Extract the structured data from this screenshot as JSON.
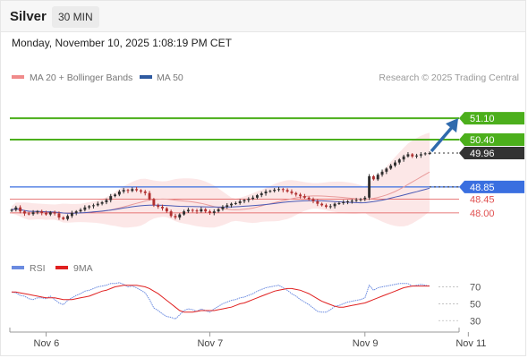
{
  "header": {
    "instrument": "Silver",
    "timeframe": "30 MIN",
    "datetime": "Monday, November 10, 2025 1:08:19 PM CET"
  },
  "colors": {
    "up": "#2e2e2e",
    "down": "#b03030",
    "bollinger_fill": "#f9d4d4",
    "ma20": "#e89a9a",
    "ma50": "#4a5ab5",
    "target": "#4caf1c",
    "support_blue": "#3a6fe0",
    "support_red": "#e05050",
    "last_price": "#333333",
    "rsi": "#6b8be0",
    "rsi_ma": "#e02020",
    "arrow": "#2f6aad"
  },
  "chart_data": [
    {
      "type": "candlestick",
      "legend": [
        {
          "name": "MA 20 + Bollinger Bands",
          "color": "#f08a8a"
        },
        {
          "name": "MA 50",
          "color": "#2e5aa0"
        }
      ],
      "copyright": "Research © 2025 Trading Central",
      "ylim": [
        47.0,
        52.1
      ],
      "levels": [
        {
          "value": 51.1,
          "label": "51.10",
          "kind": "target"
        },
        {
          "value": 50.4,
          "label": "50.40",
          "kind": "target"
        },
        {
          "value": 49.96,
          "label": "49.96",
          "kind": "last"
        },
        {
          "value": 48.85,
          "label": "48.85",
          "kind": "support"
        },
        {
          "value": 48.45,
          "label": "48.45",
          "kind": "support_minor"
        },
        {
          "value": 48.0,
          "label": "48.00",
          "kind": "support_minor"
        }
      ],
      "x_ticks": [
        {
          "label": "Nov 6",
          "index": 8
        },
        {
          "label": "Nov 7",
          "index": 46
        },
        {
          "label": "Nov 9",
          "index": 82
        },
        {
          "label": "Nov 11",
          "index": 106
        }
      ],
      "closes": [
        48.1,
        48.18,
        48.05,
        47.98,
        47.96,
        48.02,
        48.05,
        48.0,
        47.95,
        48.02,
        47.98,
        47.85,
        47.8,
        47.9,
        48.0,
        48.05,
        48.1,
        48.18,
        48.22,
        48.25,
        48.3,
        48.35,
        48.42,
        48.55,
        48.6,
        48.7,
        48.75,
        48.72,
        48.78,
        48.74,
        48.7,
        48.65,
        48.45,
        48.25,
        48.2,
        48.15,
        48.05,
        47.9,
        47.85,
        47.95,
        48.05,
        48.1,
        48.08,
        48.05,
        48.12,
        48.05,
        48.0,
        48.05,
        48.12,
        48.2,
        48.25,
        48.3,
        48.32,
        48.38,
        48.42,
        48.46,
        48.5,
        48.58,
        48.64,
        48.7,
        48.72,
        48.76,
        48.78,
        48.75,
        48.7,
        48.65,
        48.6,
        48.55,
        48.5,
        48.45,
        48.38,
        48.3,
        48.25,
        48.2,
        48.22,
        48.3,
        48.32,
        48.35,
        48.38,
        48.4,
        48.42,
        48.45,
        48.5,
        49.2,
        49.1,
        49.25,
        49.35,
        49.45,
        49.55,
        49.65,
        49.75,
        49.85,
        49.92,
        49.85,
        49.88,
        49.92,
        49.95,
        49.96
      ],
      "up_to_index": 98,
      "arrow": {
        "from": 49.96,
        "to": 51.1
      }
    },
    {
      "type": "line",
      "legend": [
        {
          "name": "RSI",
          "color": "#6b8be0"
        },
        {
          "name": "9MA",
          "color": "#e02020"
        }
      ],
      "y_ticks": [
        70,
        50,
        30
      ],
      "ylim": [
        25,
        78
      ],
      "series": [
        {
          "name": "RSI",
          "values": [
            64,
            63,
            60,
            59,
            56,
            55,
            57,
            57,
            56,
            59,
            55,
            51,
            49,
            54,
            57,
            60,
            62,
            65,
            66,
            68,
            70,
            71,
            72,
            74,
            74,
            75,
            73,
            70,
            71,
            69,
            66,
            63,
            55,
            45,
            42,
            38,
            35,
            34,
            32,
            37,
            42,
            44,
            43,
            41,
            44,
            42,
            40,
            44,
            47,
            50,
            52,
            54,
            55,
            57,
            58,
            60,
            62,
            65,
            67,
            69,
            70,
            71,
            72,
            69,
            66,
            62,
            59,
            55,
            52,
            49,
            45,
            41,
            40,
            40,
            43,
            47,
            48,
            50,
            52,
            53,
            54,
            55,
            57,
            72,
            66,
            69,
            70,
            71,
            72,
            73,
            74,
            74,
            74,
            71,
            72,
            73,
            72,
            71
          ]
        },
        {
          "name": "9MA",
          "values": [
            64,
            64,
            63,
            62,
            61,
            60,
            59,
            58,
            57,
            57,
            57,
            56,
            55,
            55,
            55,
            56,
            57,
            58,
            59,
            61,
            63,
            65,
            66,
            68,
            70,
            71,
            72,
            72,
            72,
            72,
            71,
            70,
            68,
            65,
            62,
            58,
            54,
            50,
            46,
            42,
            40,
            40,
            40,
            41,
            42,
            42,
            42,
            42,
            43,
            44,
            45,
            46,
            48,
            50,
            51,
            53,
            55,
            57,
            59,
            61,
            63,
            65,
            66,
            67,
            68,
            68,
            67,
            66,
            64,
            62,
            59,
            56,
            53,
            51,
            49,
            47,
            46,
            46,
            47,
            48,
            49,
            50,
            51,
            53,
            55,
            57,
            59,
            61,
            63,
            65,
            67,
            69,
            70,
            71,
            71,
            71,
            71,
            71
          ]
        }
      ]
    }
  ]
}
